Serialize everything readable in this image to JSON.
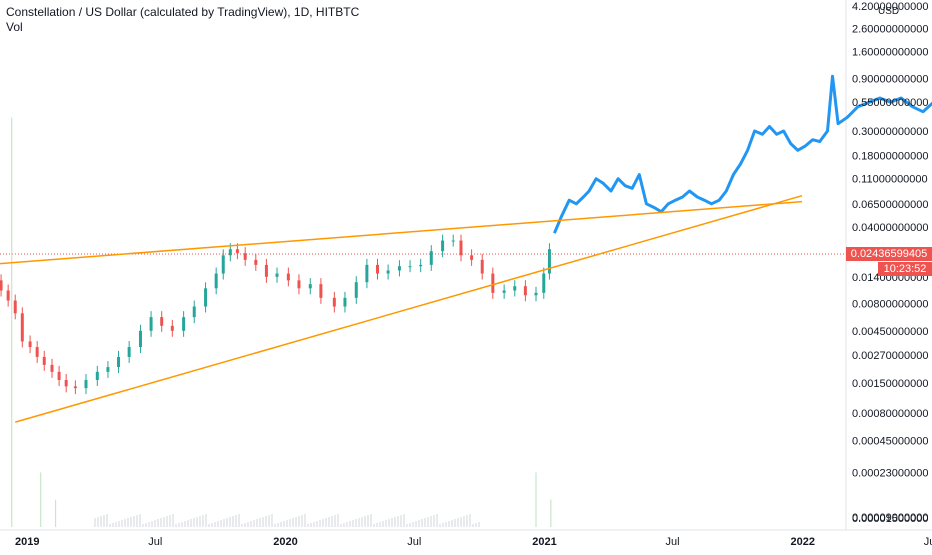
{
  "header": {
    "title": "Constellation / US Dollar (calculated by TradingView), 1D, HITBTC",
    "volume_label": "Vol"
  },
  "price_axis": {
    "currency": "USD",
    "scale": "log",
    "ticks": [
      "4.20000000000",
      "2.60000000000",
      "1.60000000000",
      "0.90000000000",
      "0.55000000000",
      "0.30000000000",
      "0.18000000000",
      "0.11000000000",
      "0.06500000000",
      "0.04000000000",
      "0.01400000000",
      "0.00800000000",
      "0.00450000000",
      "0.00270000000",
      "0.00150000000",
      "0.00080000000",
      "0.00045000000",
      "0.00023000000",
      "0.00009000000",
      "0.00001500000"
    ]
  },
  "time_axis": {
    "ticks": [
      "2019",
      "Jul",
      "2020",
      "Jul",
      "2021",
      "Jul",
      "2022",
      "Jul"
    ]
  },
  "last_price": {
    "value": "0.02436599405",
    "countdown": "10:23:52",
    "color": "#ef5350"
  },
  "colors": {
    "up": "#26a69a",
    "down": "#ef5350",
    "line": "#2196f3",
    "trendline": "#ff9800",
    "volume": "#d1d4dc",
    "grid_text": "#131722"
  },
  "chart_data": {
    "type": "line",
    "title": "Constellation / US Dollar (calculated by TradingView), 1D, HITBTC",
    "y_scale": "log",
    "ylim": [
      1.45e-05,
      4.2
    ],
    "series": [
      {
        "style": "candlestick",
        "points": [
          [
            "2018-11-15",
            0.013
          ],
          [
            "2018-11-25",
            0.0105
          ],
          [
            "2018-12-05",
            0.0085
          ],
          [
            "2018-12-15",
            0.0065
          ],
          [
            "2018-12-25",
            0.0036
          ],
          [
            "2019-01-05",
            0.0032
          ],
          [
            "2019-01-15",
            0.0026
          ],
          [
            "2019-01-25",
            0.0022
          ],
          [
            "2019-02-05",
            0.0019
          ],
          [
            "2019-02-15",
            0.0016
          ],
          [
            "2019-02-25",
            0.0014
          ],
          [
            "2019-03-10",
            0.00135
          ],
          [
            "2019-03-25",
            0.0016
          ],
          [
            "2019-04-10",
            0.0019
          ],
          [
            "2019-04-25",
            0.0021
          ],
          [
            "2019-05-10",
            0.0026
          ],
          [
            "2019-05-25",
            0.0032
          ],
          [
            "2019-06-10",
            0.0045
          ],
          [
            "2019-06-25",
            0.006
          ],
          [
            "2019-07-10",
            0.005
          ],
          [
            "2019-07-25",
            0.0045
          ],
          [
            "2019-08-10",
            0.006
          ],
          [
            "2019-08-25",
            0.0075
          ],
          [
            "2019-09-10",
            0.011
          ],
          [
            "2019-09-25",
            0.015
          ],
          [
            "2019-10-05",
            0.022
          ],
          [
            "2019-10-15",
            0.025
          ],
          [
            "2019-10-25",
            0.023
          ],
          [
            "2019-11-05",
            0.02
          ],
          [
            "2019-11-20",
            0.018
          ],
          [
            "2019-12-05",
            0.014
          ],
          [
            "2019-12-20",
            0.015
          ],
          [
            "2020-01-05",
            0.013
          ],
          [
            "2020-01-20",
            0.011
          ],
          [
            "2020-02-05",
            0.012
          ],
          [
            "2020-02-20",
            0.009
          ],
          [
            "2020-03-10",
            0.0075
          ],
          [
            "2020-03-25",
            0.009
          ],
          [
            "2020-04-10",
            0.0125
          ],
          [
            "2020-04-25",
            0.018
          ],
          [
            "2020-05-10",
            0.015
          ],
          [
            "2020-05-25",
            0.016
          ],
          [
            "2020-06-10",
            0.0175
          ],
          [
            "2020-06-25",
            0.0175
          ],
          [
            "2020-07-10",
            0.018
          ],
          [
            "2020-07-25",
            0.024
          ],
          [
            "2020-08-10",
            0.03
          ],
          [
            "2020-08-25",
            0.03
          ],
          [
            "2020-09-05",
            0.022
          ],
          [
            "2020-09-20",
            0.02
          ],
          [
            "2020-10-05",
            0.015
          ],
          [
            "2020-10-20",
            0.01
          ],
          [
            "2020-11-05",
            0.0105
          ],
          [
            "2020-11-20",
            0.0115
          ],
          [
            "2020-12-05",
            0.0095
          ],
          [
            "2020-12-20",
            0.01
          ],
          [
            "2020-12-31",
            0.015
          ],
          [
            "2021-01-08",
            0.025
          ]
        ]
      },
      {
        "style": "line",
        "points": [
          [
            "2021-01-15",
            0.035
          ],
          [
            "2021-01-25",
            0.05
          ],
          [
            "2021-02-05",
            0.07
          ],
          [
            "2021-02-15",
            0.065
          ],
          [
            "2021-02-25",
            0.075
          ],
          [
            "2021-03-05",
            0.085
          ],
          [
            "2021-03-15",
            0.11
          ],
          [
            "2021-03-25",
            0.1
          ],
          [
            "2021-04-05",
            0.085
          ],
          [
            "2021-04-15",
            0.11
          ],
          [
            "2021-04-25",
            0.095
          ],
          [
            "2021-05-05",
            0.09
          ],
          [
            "2021-05-15",
            0.12
          ],
          [
            "2021-05-25",
            0.065
          ],
          [
            "2021-06-05",
            0.06
          ],
          [
            "2021-06-15",
            0.055
          ],
          [
            "2021-06-25",
            0.065
          ],
          [
            "2021-07-05",
            0.07
          ],
          [
            "2021-07-15",
            0.075
          ],
          [
            "2021-07-25",
            0.085
          ],
          [
            "2021-08-05",
            0.075
          ],
          [
            "2021-08-15",
            0.07
          ],
          [
            "2021-08-25",
            0.065
          ],
          [
            "2021-09-05",
            0.07
          ],
          [
            "2021-09-15",
            0.085
          ],
          [
            "2021-09-25",
            0.12
          ],
          [
            "2021-10-05",
            0.15
          ],
          [
            "2021-10-15",
            0.2
          ],
          [
            "2021-10-25",
            0.3
          ],
          [
            "2021-11-05",
            0.28
          ],
          [
            "2021-11-15",
            0.33
          ],
          [
            "2021-11-25",
            0.28
          ],
          [
            "2021-12-05",
            0.3
          ],
          [
            "2021-12-15",
            0.23
          ],
          [
            "2021-12-25",
            0.2
          ],
          [
            "2022-01-05",
            0.22
          ],
          [
            "2022-01-15",
            0.25
          ],
          [
            "2022-01-25",
            0.24
          ],
          [
            "2022-02-05",
            0.3
          ],
          [
            "2022-02-12",
            0.95
          ],
          [
            "2022-02-20",
            0.35
          ],
          [
            "2022-03-05",
            0.4
          ],
          [
            "2022-03-20",
            0.5
          ],
          [
            "2022-04-05",
            0.55
          ],
          [
            "2022-04-20",
            0.6
          ],
          [
            "2022-05-05",
            0.55
          ],
          [
            "2022-05-20",
            0.6
          ],
          [
            "2022-06-05",
            0.5
          ],
          [
            "2022-06-20",
            0.45
          ],
          [
            "2022-07-05",
            0.55
          ],
          [
            "2022-07-20",
            0.5
          ],
          [
            "2022-08-05",
            0.48
          ],
          [
            "2022-08-20",
            0.45
          ],
          [
            "2022-09-05",
            0.4
          ],
          [
            "2022-09-15",
            0.3
          ],
          [
            "2022-09-25",
            0.27
          ],
          [
            "2022-10-05",
            0.35
          ],
          [
            "2022-10-15",
            0.28
          ],
          [
            "2022-10-25",
            0.25
          ]
        ]
      }
    ],
    "annotations": [
      {
        "type": "trendline",
        "from": [
          "2018-11-01",
          0.018
        ],
        "to": [
          "2021-12-31",
          0.068
        ]
      },
      {
        "type": "trendline",
        "from": [
          "2018-12-15",
          0.00066
        ],
        "to": [
          "2021-12-31",
          0.077
        ]
      }
    ],
    "volume": {
      "label": "Vol",
      "spikes": [
        [
          "2018-12-10",
          0.9
        ],
        [
          "2019-01-20",
          0.12
        ],
        [
          "2019-02-10",
          0.06
        ],
        [
          "2020-12-20",
          0.12
        ],
        [
          "2021-01-10",
          0.06
        ]
      ]
    },
    "grid": false
  }
}
